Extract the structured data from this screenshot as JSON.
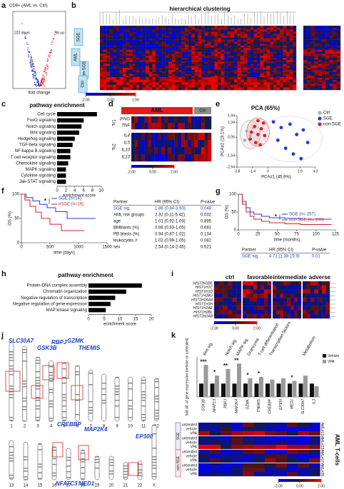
{
  "a": {
    "label": "a",
    "title": "CD8+ (AML vs. Ctrl)",
    "down": "222 down",
    "up": "36 up",
    "xlabel": "fold change"
  },
  "b": {
    "label": "b",
    "title": "hierarchical clustering",
    "groups": [
      "SGE",
      "AML",
      "non-SGE",
      "Ctrl"
    ],
    "colorbar": [
      {
        "value": -2,
        "label": "-2.00"
      },
      {
        "value": 0,
        "label": "0.00"
      },
      {
        "value": 2,
        "label": "2.00"
      }
    ]
  },
  "c": {
    "label": "c",
    "title": "pathway enrichment",
    "categories": [
      "Cell cycle",
      "FoxO signaling",
      "Notch signaling",
      "Wnt signaling",
      "Hedgehog signaling",
      "TGF-beta signaling",
      "NF-kappa B signaling",
      "T cell receptor signaling",
      "Chemokine signaling",
      "MAPK signaling",
      "Cytokine signaling",
      "Jak-STAT signaling"
    ],
    "values": [
      9,
      6,
      5.5,
      5,
      4,
      3.5,
      3,
      3,
      2.5,
      2,
      2,
      2
    ],
    "xlim": [
      0,
      10
    ],
    "xticks": [
      0,
      2,
      4,
      6,
      8,
      10
    ],
    "xlabel": "enrichment score",
    "color": "#000000"
  },
  "d": {
    "label": "d",
    "groups": [
      "AML",
      "Ctrl"
    ],
    "sets": [
      "Tc1",
      "Tc2"
    ],
    "genes": [
      "IFNG",
      "TNF",
      "IL4",
      "IL5",
      "IL10",
      "IL13"
    ],
    "colorbar": [
      {
        "value": -2,
        "label": "-2.00"
      },
      {
        "value": 0,
        "label": "0.00"
      },
      {
        "value": 2,
        "label": "2.00"
      }
    ]
  },
  "e": {
    "label": "e",
    "title": "PCA (65%)",
    "type": "scatter",
    "xlabel": "PCA#1 (45.9%)",
    "ylabel": "PCA#2 (19.1%)",
    "xlim": [
      -2.8,
      4.3
    ],
    "ylim": [
      -2.54,
      1.94
    ],
    "xticks": [
      -2.8,
      -1.4,
      0,
      2.9,
      4.3
    ],
    "yticks": [
      1.94,
      1.34,
      0.06,
      -1.54,
      -2.54
    ],
    "series": [
      {
        "name": "Ctrl",
        "color": "#b0b0b0",
        "x": [
          -1.9,
          -1.6,
          -1.3,
          -2.1
        ],
        "y": [
          0.6,
          0.2,
          0.9,
          -0.2
        ]
      },
      {
        "name": "SGE",
        "color": "#1f3fd8",
        "x": [
          0.5,
          1.2,
          2.0,
          2.6,
          3.2,
          3.6,
          1.6,
          2.3,
          0.9,
          3.0
        ],
        "y": [
          1.4,
          0.9,
          1.2,
          0.3,
          0.7,
          -0.4,
          -0.9,
          -1.4,
          -0.2,
          -1.8
        ]
      },
      {
        "name": "non-SGE",
        "color": "#d81f2a",
        "x": [
          -1.5,
          -1.2,
          -0.9,
          -0.6,
          -0.3,
          -1.1,
          -0.7,
          -1.6,
          -0.4,
          -0.9
        ],
        "y": [
          0.5,
          1.0,
          0.3,
          0.8,
          0.2,
          -0.4,
          -0.6,
          -0.1,
          1.3,
          1.5
        ]
      }
    ]
  },
  "f": {
    "label": "f",
    "type": "line",
    "ylabel": "OS (%)",
    "xlabel": "time (days)",
    "xlim": [
      0,
      1500
    ],
    "ylim": [
      0,
      100
    ],
    "xticks": [
      0,
      500,
      1000,
      1500
    ],
    "yticks": [
      0,
      50,
      100
    ],
    "sig": "*",
    "series": [
      {
        "name": "SGE (n=14)",
        "color": "#1f3fd8",
        "x": [
          0,
          80,
          200,
          320,
          450,
          600,
          800,
          1000,
          1300
        ],
        "y": [
          100,
          93,
          86,
          79,
          72,
          64,
          50,
          50,
          50
        ]
      },
      {
        "name": "nSGE (n=16)",
        "color": "#d81f2a",
        "x": [
          0,
          60,
          150,
          250,
          350,
          500,
          700,
          900,
          1100
        ],
        "y": [
          100,
          88,
          75,
          63,
          50,
          38,
          25,
          25,
          25
        ]
      }
    ],
    "table": {
      "header": [
        "Partner",
        "HR (95% CI)",
        "P-value"
      ],
      "rows": [
        [
          "SGE sig.",
          "1.86 (0.84-3.93)",
          "0.048"
        ],
        [
          "AML risk groups",
          "2.32 (0.11-5.42)",
          "0.032"
        ],
        [
          "age",
          "1.01 (0.92-1.09)",
          "0.895"
        ],
        [
          "BMblasts (%)",
          "0.98 (0.93-1.05)",
          "0.691"
        ],
        [
          "PB blasts (%)",
          "0.94 (0.87-1.02)",
          "0.134"
        ],
        [
          "leukocytes #",
          "1.02 (0.99-1.05)",
          "0.082"
        ],
        [
          "sex",
          "2.54 (0.14-2.45)",
          "0.521"
        ]
      ]
    }
  },
  "g": {
    "label": "g",
    "type": "line",
    "ylabel": "OS (%)",
    "xlabel": "time (months)",
    "xlim": [
      0,
      125
    ],
    "ylim": [
      0,
      100
    ],
    "xticks": [
      0,
      25,
      50,
      75,
      100,
      125
    ],
    "yticks": [
      0,
      50,
      100
    ],
    "sig": "*",
    "series": [
      {
        "name": "SGE (n= 257)",
        "color": "#1f3fd8",
        "x": [
          0,
          5,
          10,
          15,
          20,
          30,
          40,
          60,
          80,
          100,
          120
        ],
        "y": [
          100,
          80,
          62,
          50,
          44,
          38,
          34,
          32,
          30,
          30,
          30
        ]
      },
      {
        "name": "non-SGE (n= 200)",
        "color": "#d81f2a",
        "x": [
          0,
          5,
          10,
          15,
          20,
          30,
          40,
          60,
          80,
          100,
          120
        ],
        "y": [
          100,
          72,
          50,
          38,
          30,
          24,
          20,
          17,
          15,
          15,
          15
        ]
      }
    ],
    "table": {
      "header": [
        "Partner",
        "HR (95% CI)",
        "P-value"
      ],
      "rows": [
        [
          "SGE sig.",
          "4.71 (1.38-15.9)",
          "0.01"
        ]
      ]
    }
  },
  "h": {
    "label": "h",
    "title": "pathway enrichment",
    "categories": [
      "Protein-DNA complex assembly",
      "Chromatin organization",
      "Negative regulation of transcription",
      "Negative regulation of gene expression",
      "MAP kinase signaling"
    ],
    "values": [
      17,
      12,
      8.5,
      7,
      5.5
    ],
    "xlim": [
      0,
      20
    ],
    "xticks": [
      0,
      5,
      10,
      15,
      20
    ],
    "xlabel": "enrichment score",
    "color": "#000000"
  },
  "i": {
    "label": "i",
    "columns": [
      "ctrl",
      "favorable",
      "intermediate",
      "adverse"
    ],
    "genes": [
      "HIST2H3BE",
      "HIST1H1C",
      "HIST1H1D",
      "HIST1H2BG",
      "HIST2H2AA4",
      "HIST1H3H",
      "HIST1H2AE",
      "HIST1H2BL",
      "HIST2H2AB"
    ],
    "colorbar": [
      {
        "value": -2,
        "label": "-2.00"
      },
      {
        "value": 0,
        "label": "0.00"
      },
      {
        "value": 2,
        "label": "2.00"
      }
    ]
  },
  "j": {
    "label": "j",
    "chromosomes": [
      "1",
      "2",
      "3",
      "4",
      "5",
      "6",
      "7",
      "8",
      "9",
      "10",
      "11",
      "12",
      "13",
      "14",
      "15",
      "16",
      "17",
      "18",
      "19",
      "20",
      "21",
      "22",
      "X"
    ],
    "genes": [
      "SLC30A7",
      "GSK3B",
      "RBPJ",
      "GZMK",
      "THEMIS",
      "CREBBP",
      "MAP2K4",
      "EP300",
      "NFATC3",
      "MED1"
    ]
  },
  "k": {
    "label": "k",
    "ylabel": "fold dif. of gene expression (vehicle vs untreated)",
    "genes": [
      "GSK3B",
      "NFATC3",
      "RBPJ",
      "MAP2K4",
      "GZMK",
      "THEMIS",
      "CREBBP",
      "EP300",
      "MED1",
      "SLC30A7",
      "IL3"
    ],
    "categories_header": [
      "Wnt sig.",
      "Notch sig.",
      "MAPK sig.",
      "Granzyme",
      "T-cell differentiation",
      "Transcription factors",
      "Metabolism"
    ],
    "ylim": [
      0,
      3
    ],
    "series": [
      {
        "name": "Vehicle",
        "color": "#111111",
        "values": [
          1,
          1,
          1,
          1,
          1,
          1,
          1,
          1,
          1,
          1,
          1
        ]
      },
      {
        "name": "VPA",
        "color": "#9a9a9a",
        "values": [
          2.4,
          1.6,
          2.1,
          2.5,
          1.4,
          1.5,
          1.3,
          1.4,
          1.2,
          1.6,
          0.8
        ]
      }
    ],
    "stars": [
      "***",
      "*",
      "**",
      "**",
      "*",
      "*",
      "*"
    ],
    "rows": [
      "untreated",
      "vehicle",
      "VPA"
    ],
    "samples": [
      "AML#13",
      "AML#23",
      "AML#17",
      "AML#35"
    ],
    "groups": [
      "SGE",
      "non-SGE"
    ],
    "cells": "AML T-cells",
    "colorbar": [
      {
        "value": -2,
        "label": "-2.00"
      },
      {
        "value": 0,
        "label": "0.00"
      },
      {
        "value": 2,
        "label": "2.00"
      }
    ]
  }
}
